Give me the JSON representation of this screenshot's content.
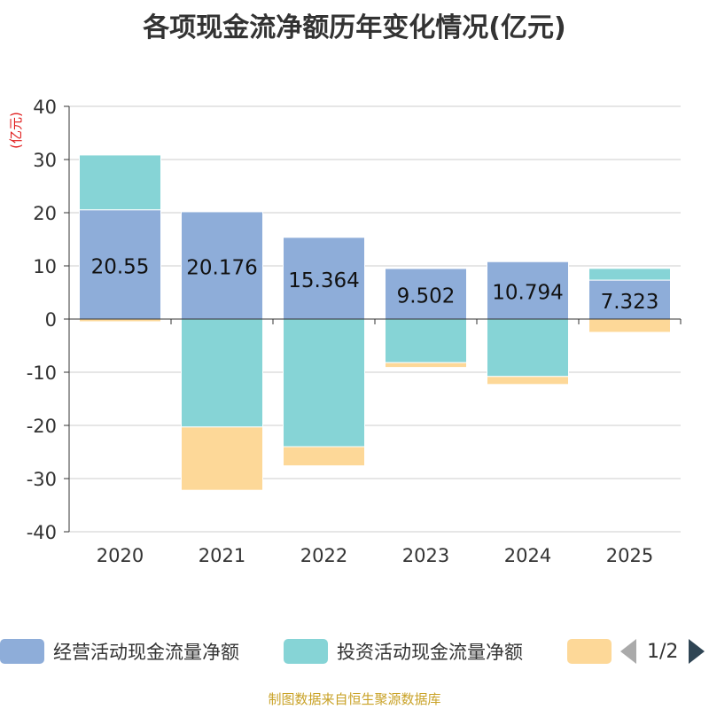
{
  "title": "各项现金流净额历年变化情况(亿元)",
  "source": "制图数据来自恒生聚源数据库",
  "legend": {
    "items": [
      {
        "label": "经营活动现金流量净额",
        "color": "#8eadd9"
      },
      {
        "label": "投资活动现金流量净额",
        "color": "#86d4d6"
      },
      {
        "label": "",
        "color": "#fdd898"
      }
    ],
    "page": "1/2"
  },
  "chart_data": {
    "type": "bar",
    "stacked": true,
    "title": "各项现金流净额历年变化情况(亿元)",
    "ylabel": "(亿元)",
    "xlabel": "",
    "ylim": [
      -40,
      40
    ],
    "yticks": [
      40,
      30,
      20,
      10,
      0,
      -10,
      -20,
      -30,
      -40
    ],
    "grid": true,
    "legend_position": "bottom",
    "categories": [
      "2020",
      "2021",
      "2022",
      "2023",
      "2024",
      "2025"
    ],
    "series": [
      {
        "name": "经营活动现金流量净额",
        "color": "#8eadd9",
        "values": [
          20.55,
          20.176,
          15.364,
          9.502,
          10.794,
          7.323
        ],
        "labels": [
          "20.55",
          "20.176",
          "15.364",
          "9.502",
          "10.794",
          "7.323"
        ]
      },
      {
        "name": "投资活动现金流量净额",
        "color": "#86d4d6",
        "values": [
          10.3,
          -20.3,
          -24.0,
          -8.2,
          -10.8,
          2.2
        ]
      },
      {
        "name": "",
        "color": "#fdd898",
        "values": [
          -0.5,
          -11.9,
          -3.6,
          -0.9,
          -1.5,
          -2.5
        ]
      }
    ]
  }
}
